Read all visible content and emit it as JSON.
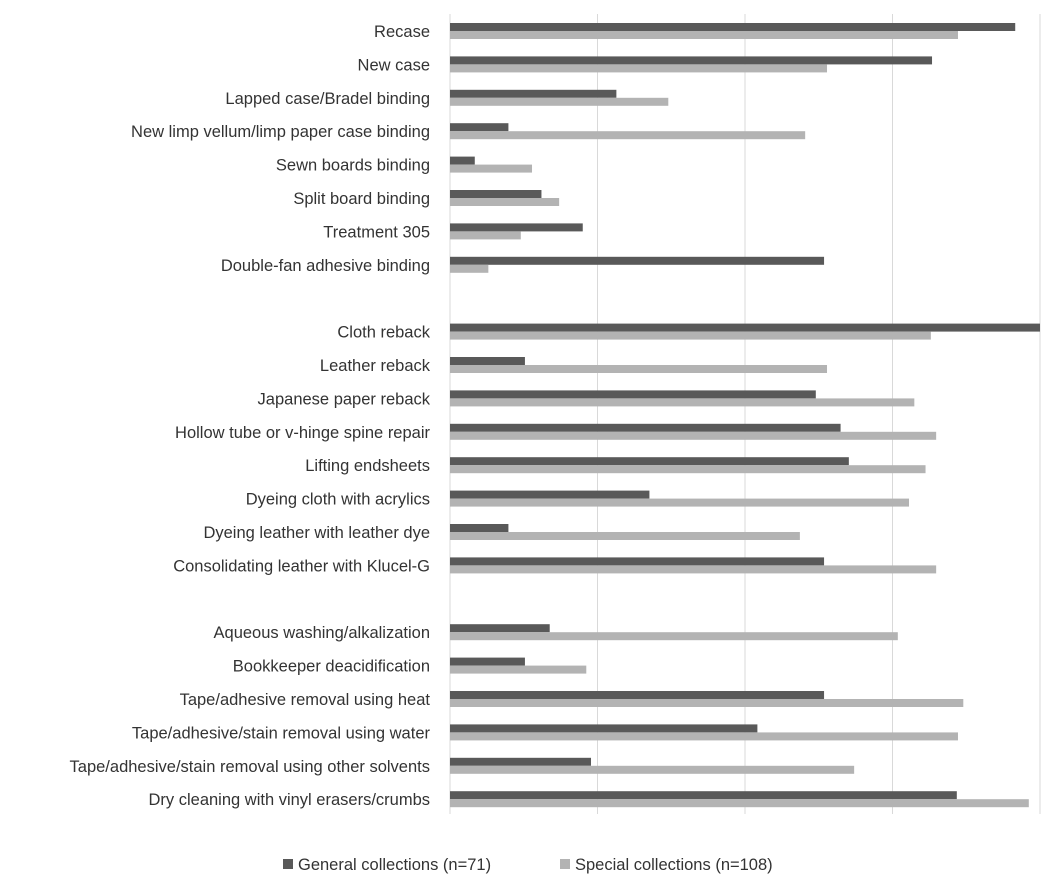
{
  "chart_data": {
    "type": "bar",
    "orientation": "horizontal",
    "title": "",
    "xlabel": "",
    "ylabel": "",
    "xlim": [
      0,
      100
    ],
    "grid": true,
    "legend_position": "bottom",
    "categories": [
      "Recase",
      "New case",
      "Lapped case/Bradel binding",
      "New limp vellum/limp paper case binding",
      "Sewn boards binding",
      "Split board binding",
      "Treatment 305",
      "Double-fan adhesive binding",
      "",
      "Cloth reback",
      "Leather reback",
      "Japanese paper reback",
      "Hollow tube or v-hinge spine repair",
      "Lifting endsheets",
      "Dyeing cloth with acrylics",
      "Dyeing leather with leather dye",
      "Consolidating leather with Klucel-G",
      "",
      "Aqueous washing/alkalization",
      "Bookkeeper deacidification",
      "Tape/adhesive removal using heat",
      "Tape/adhesive/stain removal using water",
      "Tape/adhesive/stain removal using other solvents",
      "Dry cleaning with vinyl erasers/crumbs"
    ],
    "series": [
      {
        "name": "General collections (n=71)",
        "color": "#595959",
        "values": [
          95.8,
          81.7,
          28.2,
          9.9,
          4.2,
          15.5,
          22.5,
          63.4,
          null,
          100,
          12.7,
          62.0,
          66.2,
          67.6,
          33.8,
          9.9,
          63.4,
          null,
          16.9,
          12.7,
          63.4,
          52.1,
          23.9,
          85.9
        ]
      },
      {
        "name": "Special collections (n=108)",
        "color": "#b3b3b3",
        "values": [
          86.1,
          63.9,
          37.0,
          60.2,
          13.9,
          18.5,
          12.0,
          6.5,
          null,
          81.5,
          63.9,
          78.7,
          82.4,
          80.6,
          77.8,
          59.3,
          82.4,
          null,
          75.9,
          23.1,
          87.0,
          86.1,
          68.5,
          98.1
        ]
      }
    ]
  }
}
